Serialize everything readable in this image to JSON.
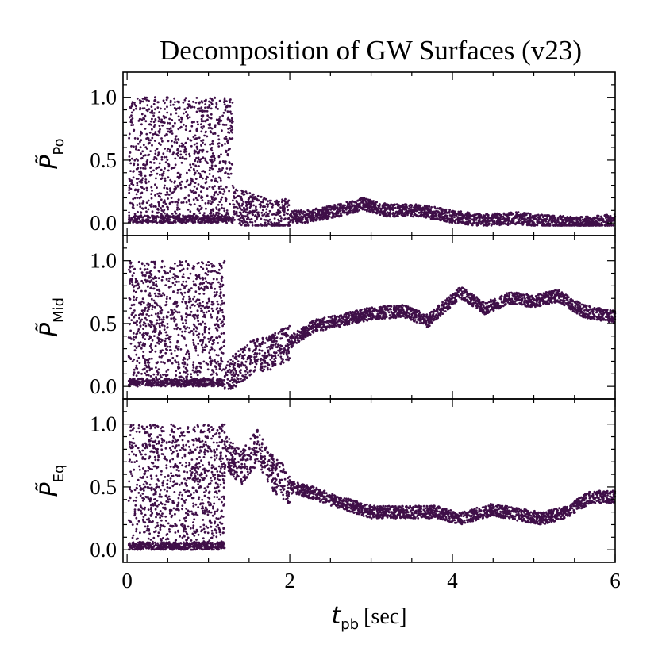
{
  "chart_data": {
    "type": "scatter",
    "title": "Decomposition of GW Surfaces (v23)",
    "xlabel": {
      "symbol": "t",
      "subscript": "pb",
      "unit": "[sec]"
    },
    "xlim": [
      -0.05,
      6.0
    ],
    "xticks": [
      "0",
      "2",
      "4",
      "6"
    ],
    "ylim": [
      -0.1,
      1.2
    ],
    "yticks": [
      "0.0",
      "0.5",
      "1.0"
    ],
    "color": "#3f0f48",
    "panels": [
      {
        "name": "po",
        "ylabel": {
          "symbol": "P̃",
          "subscript": "Po"
        },
        "trend": [
          [
            1.3,
            0.15
          ],
          [
            1.5,
            0.1
          ],
          [
            1.8,
            0.05
          ],
          [
            2.2,
            0.05
          ],
          [
            2.6,
            0.1
          ],
          [
            2.9,
            0.15
          ],
          [
            3.2,
            0.1
          ],
          [
            3.6,
            0.1
          ],
          [
            4.0,
            0.05
          ],
          [
            4.4,
            0.02
          ],
          [
            4.8,
            0.04
          ],
          [
            5.2,
            0.01
          ],
          [
            5.6,
            0.0
          ],
          [
            6.0,
            0.02
          ]
        ]
      },
      {
        "name": "mid",
        "ylabel": {
          "symbol": "P̃",
          "subscript": "Mid"
        },
        "trend": [
          [
            1.2,
            0.05
          ],
          [
            1.5,
            0.22
          ],
          [
            1.8,
            0.28
          ],
          [
            2.0,
            0.35
          ],
          [
            2.3,
            0.48
          ],
          [
            2.6,
            0.52
          ],
          [
            3.0,
            0.58
          ],
          [
            3.4,
            0.6
          ],
          [
            3.7,
            0.52
          ],
          [
            4.1,
            0.75
          ],
          [
            4.4,
            0.62
          ],
          [
            4.7,
            0.7
          ],
          [
            5.0,
            0.68
          ],
          [
            5.3,
            0.72
          ],
          [
            5.6,
            0.6
          ],
          [
            6.0,
            0.55
          ]
        ]
      },
      {
        "name": "eq",
        "ylabel": {
          "symbol": "P̃",
          "subscript": "Eq"
        },
        "trend": [
          [
            1.2,
            0.78
          ],
          [
            1.4,
            0.65
          ],
          [
            1.6,
            0.82
          ],
          [
            1.8,
            0.6
          ],
          [
            2.0,
            0.5
          ],
          [
            2.3,
            0.45
          ],
          [
            2.6,
            0.38
          ],
          [
            3.0,
            0.3
          ],
          [
            3.4,
            0.3
          ],
          [
            3.8,
            0.3
          ],
          [
            4.1,
            0.25
          ],
          [
            4.5,
            0.32
          ],
          [
            4.8,
            0.28
          ],
          [
            5.1,
            0.25
          ],
          [
            5.4,
            0.3
          ],
          [
            5.7,
            0.42
          ],
          [
            6.0,
            0.42
          ]
        ]
      }
    ]
  }
}
